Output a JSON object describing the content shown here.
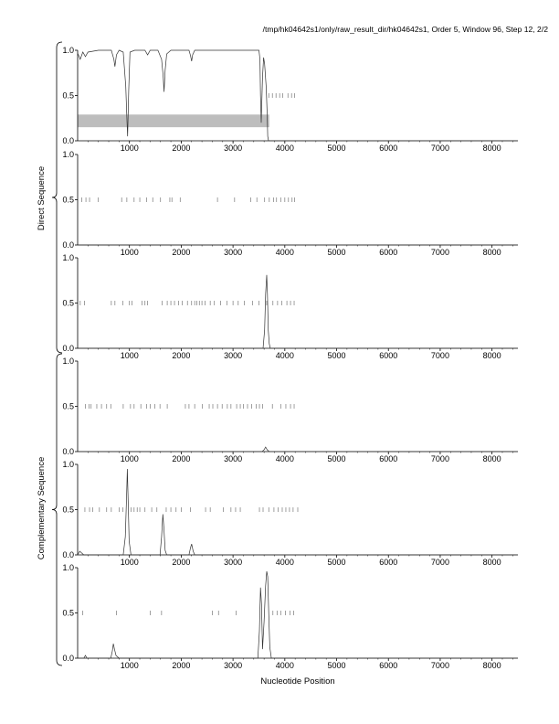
{
  "header": {
    "title": "/tmp/hk04642s1/only/raw_result_dir/hk04642s1, Order 5, Window 96, Step 12, 2/2"
  },
  "labels": {
    "xlabel": "Nucleotide Position",
    "direct_group": "Direct Sequence",
    "complementary_group": "Complementary Sequence"
  },
  "colors": {
    "axis": "#000000",
    "curve": "#333333",
    "marks": "#777777",
    "band": "#bdbdbd"
  },
  "chart_data": [
    {
      "type": "line",
      "panel": 1,
      "group": "Direct Sequence",
      "xlim": [
        0,
        8500
      ],
      "ylim": [
        0,
        1
      ],
      "xticks": [
        1000,
        2000,
        3000,
        4000,
        5000,
        6000,
        7000,
        8000
      ],
      "yticks": [
        "0.0",
        "0.5",
        "1.0"
      ],
      "curve": [
        [
          0,
          0.97
        ],
        [
          50,
          0.9
        ],
        [
          100,
          0.98
        ],
        [
          150,
          0.93
        ],
        [
          200,
          0.98
        ],
        [
          400,
          1
        ],
        [
          650,
          1
        ],
        [
          700,
          0.9
        ],
        [
          720,
          0.82
        ],
        [
          750,
          0.95
        ],
        [
          800,
          1
        ],
        [
          880,
          0.98
        ],
        [
          930,
          0.6
        ],
        [
          950,
          0.25
        ],
        [
          965,
          0.05
        ],
        [
          985,
          0.55
        ],
        [
          1010,
          0.98
        ],
        [
          1100,
          1
        ],
        [
          1300,
          1
        ],
        [
          1350,
          0.95
        ],
        [
          1400,
          1
        ],
        [
          1550,
          1
        ],
        [
          1620,
          0.9
        ],
        [
          1650,
          0.72
        ],
        [
          1668,
          0.54
        ],
        [
          1690,
          0.78
        ],
        [
          1720,
          0.96
        ],
        [
          1800,
          1
        ],
        [
          2150,
          1
        ],
        [
          2180,
          0.94
        ],
        [
          2200,
          0.88
        ],
        [
          2220,
          0.95
        ],
        [
          2260,
          1
        ],
        [
          3500,
          1
        ],
        [
          3520,
          0.9
        ],
        [
          3530,
          0.5
        ],
        [
          3545,
          0.2
        ],
        [
          3570,
          0.7
        ],
        [
          3590,
          0.92
        ],
        [
          3610,
          0.85
        ],
        [
          3640,
          0.6
        ],
        [
          3660,
          0.3
        ],
        [
          3670,
          0.05
        ],
        [
          3685,
          0
        ],
        [
          8500,
          0
        ]
      ],
      "marks_y": 0.5,
      "marks_x": [
        3690,
        3760,
        3830,
        3900,
        3960,
        4060,
        4130,
        4190
      ],
      "band": {
        "x": [
          0,
          3700
        ],
        "y": [
          0.15,
          0.29
        ]
      }
    },
    {
      "type": "line",
      "panel": 2,
      "group": "Direct Sequence",
      "xlim": [
        0,
        8500
      ],
      "ylim": [
        0,
        1
      ],
      "xticks": [
        1000,
        2000,
        3000,
        4000,
        5000,
        6000,
        7000,
        8000
      ],
      "yticks": [
        "0.0",
        "0.5",
        "1.0"
      ],
      "curve": [
        [
          0,
          0
        ],
        [
          8500,
          0
        ]
      ],
      "marks_y": 0.5,
      "marks_x": [
        80,
        160,
        230,
        400,
        850,
        950,
        1090,
        1200,
        1330,
        1450,
        1600,
        1780,
        1820,
        1980,
        2700,
        3030,
        3340,
        3460,
        3610,
        3700,
        3780,
        3840,
        3920,
        4000,
        4070,
        4140,
        4190
      ],
      "band": null
    },
    {
      "type": "line",
      "panel": 3,
      "group": "Direct Sequence",
      "xlim": [
        0,
        8500
      ],
      "ylim": [
        0,
        1
      ],
      "xticks": [
        1000,
        2000,
        3000,
        4000,
        5000,
        6000,
        7000,
        8000
      ],
      "yticks": [
        "0.0",
        "0.5",
        "1.0"
      ],
      "curve": [
        [
          0,
          0
        ],
        [
          3580,
          0
        ],
        [
          3610,
          0.2
        ],
        [
          3630,
          0.6
        ],
        [
          3650,
          0.81
        ],
        [
          3665,
          0.6
        ],
        [
          3680,
          0.2
        ],
        [
          3700,
          0.05
        ],
        [
          3720,
          0
        ],
        [
          8500,
          0
        ]
      ],
      "marks_y": 0.5,
      "marks_x": [
        50,
        130,
        650,
        720,
        870,
        1000,
        1050,
        1240,
        1300,
        1350,
        1630,
        1730,
        1800,
        1870,
        1950,
        2020,
        2120,
        2200,
        2260,
        2300,
        2350,
        2400,
        2460,
        2560,
        2640,
        2760,
        2880,
        3000,
        3100,
        3220,
        3380,
        3500,
        3650,
        3770,
        3860,
        3940,
        4040,
        4110,
        4180
      ],
      "band": null
    },
    {
      "type": "line",
      "panel": 4,
      "group": "Complementary Sequence",
      "xlim": [
        0,
        8500
      ],
      "ylim": [
        0,
        1
      ],
      "xticks": [
        1000,
        2000,
        3000,
        4000,
        5000,
        6000,
        7000,
        8000
      ],
      "yticks": [
        "0.0",
        "0.5",
        "1.0"
      ],
      "curve": [
        [
          0,
          0
        ],
        [
          3560,
          0
        ],
        [
          3600,
          0.02
        ],
        [
          3630,
          0.05
        ],
        [
          3660,
          0.02
        ],
        [
          3700,
          0
        ],
        [
          8500,
          0
        ]
      ],
      "marks_y": 0.5,
      "marks_x": [
        150,
        220,
        260,
        370,
        460,
        560,
        640,
        880,
        1020,
        1090,
        1220,
        1330,
        1400,
        1490,
        1590,
        1730,
        2080,
        2150,
        2260,
        2410,
        2540,
        2610,
        2700,
        2790,
        2890,
        2960,
        3070,
        3140,
        3200,
        3280,
        3360,
        3450,
        3510,
        3570,
        3760,
        3920,
        4020,
        4110,
        4180
      ],
      "band": null
    },
    {
      "type": "line",
      "panel": 5,
      "group": "Complementary Sequence",
      "xlim": [
        0,
        8500
      ],
      "ylim": [
        0,
        1
      ],
      "xticks": [
        1000,
        2000,
        3000,
        4000,
        5000,
        6000,
        7000,
        8000
      ],
      "yticks": [
        "0.0",
        "0.5",
        "1.0"
      ],
      "curve": [
        [
          0,
          0
        ],
        [
          40,
          0.04
        ],
        [
          80,
          0.02
        ],
        [
          120,
          0
        ],
        [
          880,
          0
        ],
        [
          920,
          0.2
        ],
        [
          945,
          0.65
        ],
        [
          960,
          0.95
        ],
        [
          975,
          0.6
        ],
        [
          995,
          0.15
        ],
        [
          1030,
          0
        ],
        [
          1590,
          0
        ],
        [
          1620,
          0.2
        ],
        [
          1645,
          0.45
        ],
        [
          1665,
          0.3
        ],
        [
          1690,
          0.05
        ],
        [
          1720,
          0
        ],
        [
          2150,
          0
        ],
        [
          2180,
          0.08
        ],
        [
          2200,
          0.12
        ],
        [
          2230,
          0.04
        ],
        [
          2260,
          0
        ],
        [
          8500,
          0
        ]
      ],
      "marks_y": 0.5,
      "marks_x": [
        140,
        230,
        290,
        420,
        560,
        650,
        800,
        870,
        1030,
        1090,
        1150,
        1200,
        1300,
        1430,
        1530,
        1710,
        1800,
        1900,
        2000,
        2180,
        2470,
        2560,
        2810,
        2960,
        3050,
        3140,
        3510,
        3580,
        3690,
        3790,
        3870,
        3950,
        4020,
        4090,
        4160,
        4250
      ],
      "band": null
    },
    {
      "type": "line",
      "panel": 6,
      "group": "Complementary Sequence",
      "xlim": [
        0,
        8500
      ],
      "ylim": [
        0,
        1
      ],
      "xticks": [
        1000,
        2000,
        3000,
        4000,
        5000,
        6000,
        7000,
        8000
      ],
      "yticks": [
        "0.0",
        "0.5",
        "1.0"
      ],
      "curve": [
        [
          0,
          0
        ],
        [
          120,
          0
        ],
        [
          150,
          0.03
        ],
        [
          180,
          0
        ],
        [
          640,
          0
        ],
        [
          670,
          0.08
        ],
        [
          690,
          0.16
        ],
        [
          710,
          0.1
        ],
        [
          740,
          0.03
        ],
        [
          800,
          0
        ],
        [
          3480,
          0
        ],
        [
          3510,
          0.3
        ],
        [
          3530,
          0.78
        ],
        [
          3550,
          0.6
        ],
        [
          3570,
          0.1
        ],
        [
          3600,
          0.4
        ],
        [
          3630,
          0.8
        ],
        [
          3650,
          0.96
        ],
        [
          3670,
          0.9
        ],
        [
          3690,
          0.5
        ],
        [
          3710,
          0.12
        ],
        [
          3740,
          0
        ],
        [
          8500,
          0
        ]
      ],
      "marks_y": 0.5,
      "marks_x": [
        100,
        750,
        1400,
        1620,
        2600,
        2720,
        3060,
        3770,
        3850,
        3920,
        4010,
        4100,
        4170
      ],
      "band": null
    }
  ]
}
